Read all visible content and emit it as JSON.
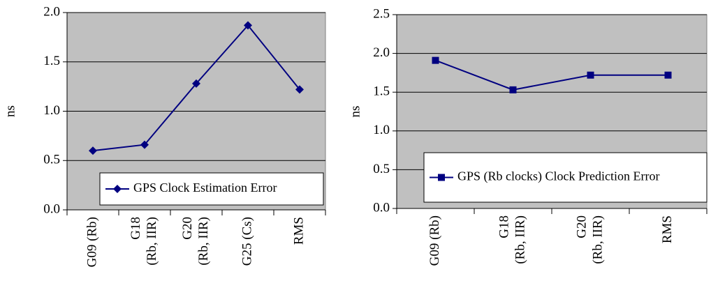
{
  "chart_data": [
    {
      "type": "line",
      "ylabel": "ns",
      "categories": [
        [
          "G09 (Rb)"
        ],
        [
          "G18",
          "(Rb, IIR)"
        ],
        [
          "G20",
          "(Rb, IIR)"
        ],
        [
          "G25 (Cs)"
        ],
        [
          "RMS"
        ]
      ],
      "series": [
        {
          "name": "GPS Clock Estimation Error",
          "color": "#000080",
          "marker": "diamond",
          "values": [
            0.6,
            0.66,
            1.28,
            1.87,
            1.22
          ]
        }
      ],
      "ylim": [
        0,
        2.0
      ],
      "yticks": [
        {
          "value": 0,
          "label": "0.0"
        },
        0.5,
        {
          "value": 1,
          "label": "1.0"
        },
        1.5,
        {
          "value": 2,
          "label": "2.0"
        }
      ],
      "grid": true,
      "legend": "lower right"
    },
    {
      "type": "line",
      "ylabel": "ns",
      "categories": [
        [
          "G09 (Rb)"
        ],
        [
          "G18",
          "(Rb, IIR)"
        ],
        [
          "G20",
          "(Rb, IIR)"
        ],
        [
          "RMS"
        ]
      ],
      "series": [
        {
          "name": "GPS (Rb clocks) Clock Prediction Error",
          "color": "#000080",
          "marker": "square",
          "values": [
            1.91,
            1.53,
            1.72,
            1.72
          ]
        }
      ],
      "ylim": [
        0,
        2.5
      ],
      "yticks": [
        {
          "value": 0,
          "label": "0.0"
        },
        0.5,
        {
          "value": 1,
          "label": "1.0"
        },
        1.5,
        {
          "value": 2,
          "label": "2.0"
        },
        2.5
      ],
      "grid": true,
      "legend": "lower right"
    }
  ]
}
